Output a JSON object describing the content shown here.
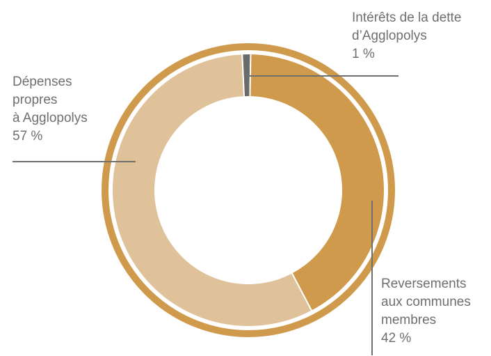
{
  "chart_data": {
    "type": "pie",
    "style": "donut",
    "title": "",
    "colors": {
      "outer_ring": "#d09a4c",
      "leader_line": "#6f6f6f",
      "label_text": "#6f6f6f"
    },
    "slices": [
      {
        "key": "interets",
        "label_lines": [
          "Intérêts de la dette",
          "d’Agglopolys"
        ],
        "value": 1,
        "value_label": "1 %",
        "color": "#6b6b6b"
      },
      {
        "key": "reversements",
        "label_lines": [
          "Reversements",
          "aux communes",
          "membres"
        ],
        "value": 42,
        "value_label": "42 %",
        "color": "#d09a4c"
      },
      {
        "key": "depenses",
        "label_lines": [
          "Dépenses",
          "propres",
          "à Agglopolys"
        ],
        "value": 57,
        "value_label": "57 %",
        "color": "#dfc19a"
      }
    ]
  }
}
